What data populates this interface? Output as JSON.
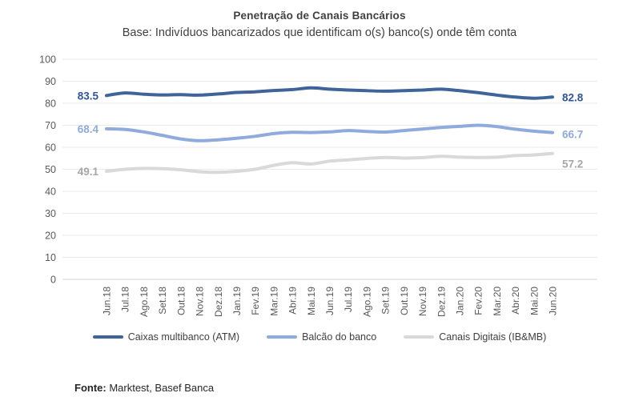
{
  "title": "Penetração de Canais Bancários",
  "subtitle": "Base: Indivíduos bancarizados que identificam o(s) banco(s) onde têm conta",
  "footer": {
    "label": "Fonte:",
    "text": " Marktest, Basef Banca"
  },
  "colors": {
    "background": "#FFFFFF",
    "title_text": "#404040",
    "tick_text": "#595959",
    "gridline": "#E9E9E9",
    "axis_line": "#D6D6D6",
    "series_atm": "#3E6499",
    "series_balcao": "#8FAADC",
    "series_digitais": "#D9D9D9",
    "label_atm": "#2F5597",
    "label_balcao": "#8FAADC",
    "label_digitais": "#A6A6A6"
  },
  "chart_data": {
    "type": "line",
    "smooth": true,
    "grid": true,
    "legend_position": "bottom",
    "ylim": [
      0,
      100
    ],
    "ytick_step": 10,
    "categories": [
      "Jun.18",
      "Jul.18",
      "Ago.18",
      "Set.18",
      "Out.18",
      "Nov.18",
      "Dez.18",
      "Jan.19",
      "Fev.19",
      "Mar.19",
      "Abr.19",
      "Mai.19",
      "Jun.19",
      "Jul.19",
      "Ago.19",
      "Set.19",
      "Out.19",
      "Nov.19",
      "Dez.19",
      "Jan.20",
      "Fev.20",
      "Mar.20",
      "Abr.20",
      "Mai.20",
      "Jun.20"
    ],
    "series": [
      {
        "id": "atm",
        "name": "Caixas multibanco (ATM)",
        "color": "#3E6499",
        "label_color": "#2F5597",
        "first_label": "83.5",
        "last_label": "82.8",
        "last_label_dy": 0,
        "values": [
          83.5,
          84.7,
          84.1,
          83.8,
          83.9,
          83.7,
          84.2,
          84.9,
          85.2,
          85.8,
          86.2,
          87.0,
          86.4,
          86.0,
          85.7,
          85.5,
          85.7,
          86.0,
          86.4,
          85.7,
          84.8,
          83.7,
          82.8,
          82.3,
          82.8
        ]
      },
      {
        "id": "balcao",
        "name": "Balcão do banco",
        "color": "#8FAADC",
        "label_color": "#8FAADC",
        "first_label": "68.4",
        "last_label": "66.7",
        "last_label_dy": 2,
        "values": [
          68.4,
          68.1,
          67.0,
          65.4,
          63.8,
          63.0,
          63.4,
          64.1,
          65.0,
          66.2,
          66.8,
          66.7,
          67.0,
          67.6,
          67.2,
          66.9,
          67.6,
          68.3,
          69.0,
          69.5,
          70.0,
          69.4,
          68.2,
          67.3,
          66.7
        ]
      },
      {
        "id": "digitais",
        "name": "Canais Digitais (IB&MB)",
        "color": "#D9D9D9",
        "label_color": "#A6A6A6",
        "first_label": "49.1",
        "last_label": "57.2",
        "last_label_dy": 13,
        "values": [
          49.1,
          50.0,
          50.4,
          50.3,
          49.8,
          48.9,
          48.6,
          49.1,
          50.0,
          51.8,
          53.0,
          52.4,
          53.7,
          54.3,
          54.9,
          55.4,
          55.1,
          55.3,
          55.9,
          55.5,
          55.4,
          55.5,
          56.2,
          56.5,
          57.2
        ]
      }
    ]
  }
}
